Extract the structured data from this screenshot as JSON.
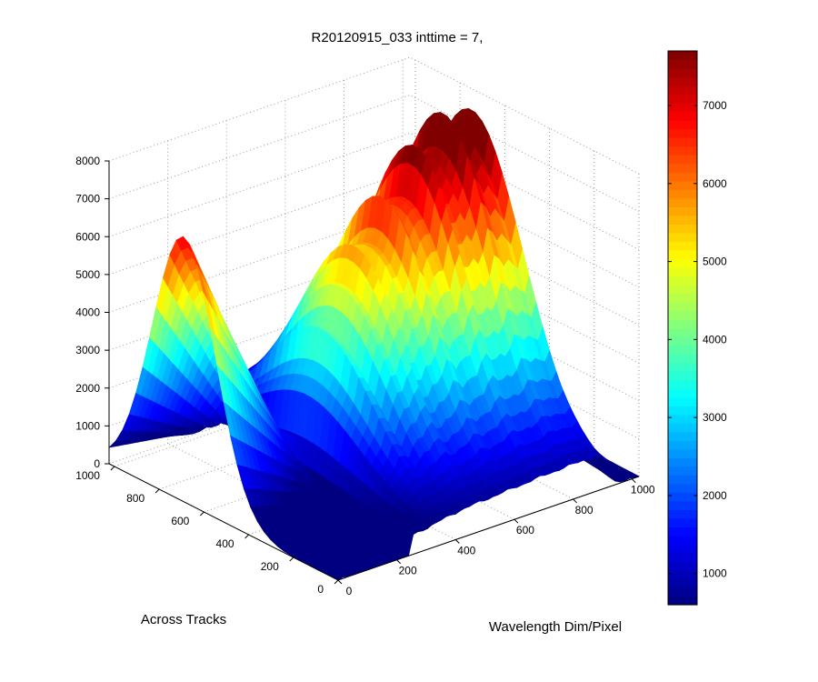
{
  "chart_data": {
    "type": "surface",
    "title": "R20120915_033 inttime = 7,",
    "xlabel": "Wavelength Dim/Pixel",
    "ylabel": "Across Tracks",
    "zlabel": "",
    "xlim": [
      0,
      1024
    ],
    "ylim": [
      0,
      1024
    ],
    "zlim": [
      0,
      8000
    ],
    "x_ticks": [
      "0",
      "200",
      "400",
      "600",
      "800",
      "1000"
    ],
    "y_ticks": [
      "0",
      "200",
      "400",
      "600",
      "800",
      "1000"
    ],
    "z_ticks": [
      "0",
      "1000",
      "2000",
      "3000",
      "4000",
      "5000",
      "6000",
      "7000",
      "8000"
    ],
    "colorbar": {
      "colormap": "jet",
      "range": [
        600,
        7700
      ],
      "ticks": [
        "1000",
        "2000",
        "3000",
        "4000",
        "5000",
        "6000",
        "7000"
      ]
    },
    "grid": true,
    "series": [
      {
        "x": [
          0,
          100,
          200,
          260,
          300,
          330,
          380,
          420,
          480,
          520,
          580,
          640,
          700,
          760,
          820,
          880,
          940,
          1000
        ],
        "y_profile_peak": [
          0,
          0,
          200,
          1400,
          2600,
          3300,
          3700,
          4100,
          4500,
          5000,
          5400,
          5700,
          6000,
          6100,
          6200,
          6000,
          5600,
          0
        ]
      },
      {
        "y": [
          0,
          200,
          400,
          600,
          800,
          900,
          1000
        ],
        "x_profile_peak": [
          3000,
          5200,
          6800,
          7000,
          5200,
          3300,
          1300
        ]
      }
    ]
  }
}
